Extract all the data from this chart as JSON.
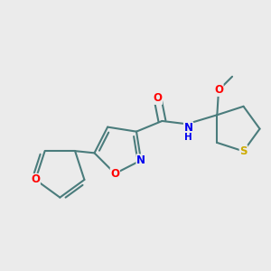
{
  "bg_color": "#ebebeb",
  "bond_color": "#4a7c7c",
  "bond_width": 1.5,
  "atom_colors": {
    "O": "#ff0000",
    "N": "#0000ee",
    "S": "#ccaa00",
    "C": "#4a7c7c"
  },
  "font_size_atom": 8.5
}
